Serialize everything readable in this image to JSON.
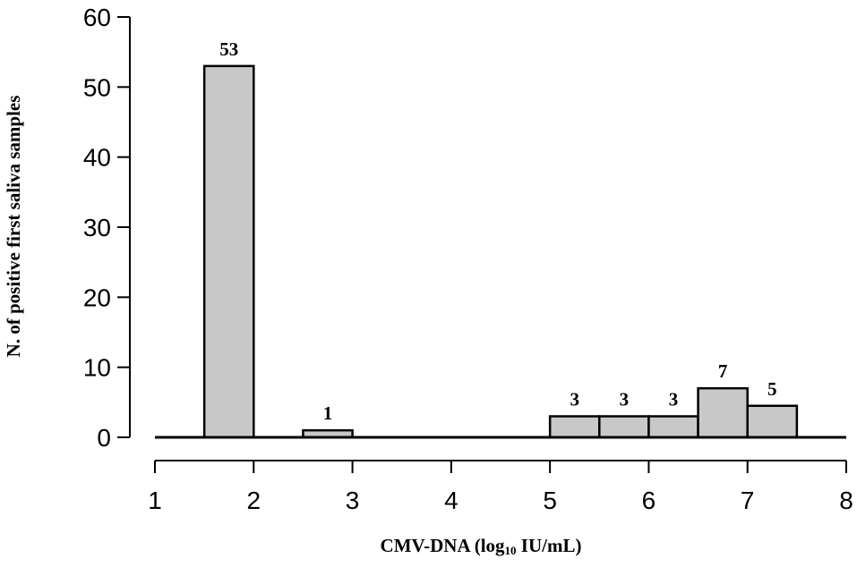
{
  "chart_data": {
    "type": "bar",
    "title": "",
    "xlabel_parts": {
      "pre": "CMV-DNA (log",
      "sub": "10",
      "post": " IU/mL)"
    },
    "ylabel": "N. of positive first saliva samples",
    "xlim": [
      1,
      8
    ],
    "ylim": [
      0,
      60
    ],
    "xticks": [
      1,
      2,
      3,
      4,
      5,
      6,
      7,
      8
    ],
    "yticks": [
      0,
      10,
      20,
      30,
      40,
      50,
      60
    ],
    "bar_color": "#c8c8c8",
    "bars": [
      {
        "x_start": 1.5,
        "x_end": 2.0,
        "value": 53,
        "label": "53"
      },
      {
        "x_start": 2.5,
        "x_end": 3.0,
        "value": 1,
        "label": "1"
      },
      {
        "x_start": 5.0,
        "x_end": 5.5,
        "value": 3,
        "label": "3"
      },
      {
        "x_start": 5.5,
        "x_end": 6.0,
        "value": 3,
        "label": "3"
      },
      {
        "x_start": 6.0,
        "x_end": 6.5,
        "value": 3,
        "label": "3"
      },
      {
        "x_start": 6.5,
        "x_end": 7.0,
        "value": 7,
        "label": "7"
      },
      {
        "x_start": 7.0,
        "x_end": 7.5,
        "value": 4.5,
        "label": "5"
      }
    ]
  }
}
